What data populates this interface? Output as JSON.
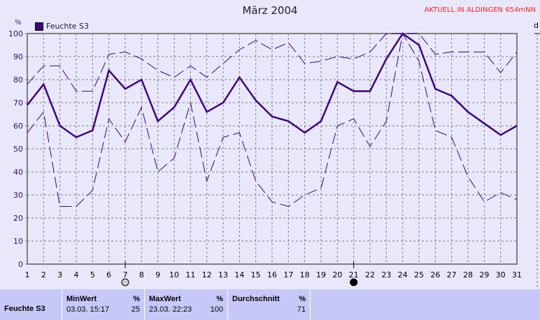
{
  "chart_data": {
    "type": "line",
    "title": "März 2004",
    "annotation": "AKTUELL IN ALDINGEN 654mNN",
    "ylabel": "%",
    "right_axis_label": "d",
    "ylim": [
      0,
      100
    ],
    "yticks": [
      0,
      10,
      20,
      30,
      40,
      50,
      60,
      70,
      80,
      90,
      100
    ],
    "x": [
      1,
      2,
      3,
      4,
      5,
      6,
      7,
      8,
      9,
      10,
      11,
      12,
      13,
      14,
      15,
      16,
      17,
      18,
      19,
      20,
      21,
      22,
      23,
      24,
      25,
      26,
      27,
      28,
      29,
      30,
      31
    ],
    "grid": true,
    "legend": "top-left",
    "series": [
      {
        "name": "Feuchte S3",
        "style": "solid",
        "color": "#400080",
        "values": [
          69,
          78,
          60,
          55,
          58,
          84,
          76,
          80,
          62,
          68,
          80,
          66,
          70,
          81,
          71,
          64,
          62,
          57,
          62,
          79,
          75,
          75,
          89,
          100,
          95,
          76,
          73,
          66,
          61,
          56,
          60
        ]
      },
      {
        "style": "dashed-max",
        "color": "#400080",
        "values": [
          78,
          86,
          86,
          75,
          75,
          91,
          92,
          89,
          84,
          81,
          86,
          81,
          87,
          93,
          97,
          93,
          96,
          87,
          88,
          90,
          89,
          92,
          100,
          100,
          100,
          91,
          92,
          92,
          92,
          83,
          92
        ]
      },
      {
        "style": "dashed-min",
        "color": "#400080",
        "values": [
          57,
          66,
          25,
          25,
          32,
          63,
          53,
          68,
          40,
          46,
          70,
          36,
          55,
          57,
          36,
          27,
          25,
          30,
          33,
          60,
          63,
          51,
          62,
          100,
          88,
          58,
          55,
          38,
          27,
          31,
          28
        ]
      }
    ],
    "markers": [
      {
        "day": 7,
        "symbol": "hollow-circle"
      },
      {
        "day": 21,
        "symbol": "filled-circle"
      }
    ]
  },
  "stats": {
    "series_label": "Feuchte S3",
    "min": {
      "header": "MinWert",
      "unit": "%",
      "time": "03.03.  15:17",
      "value": "25"
    },
    "max": {
      "header": "MaxWert",
      "unit": "%",
      "time": "23.03.  22:23",
      "value": "100"
    },
    "avg": {
      "header": "Durchschnitt",
      "unit": "%",
      "value": "71"
    }
  }
}
